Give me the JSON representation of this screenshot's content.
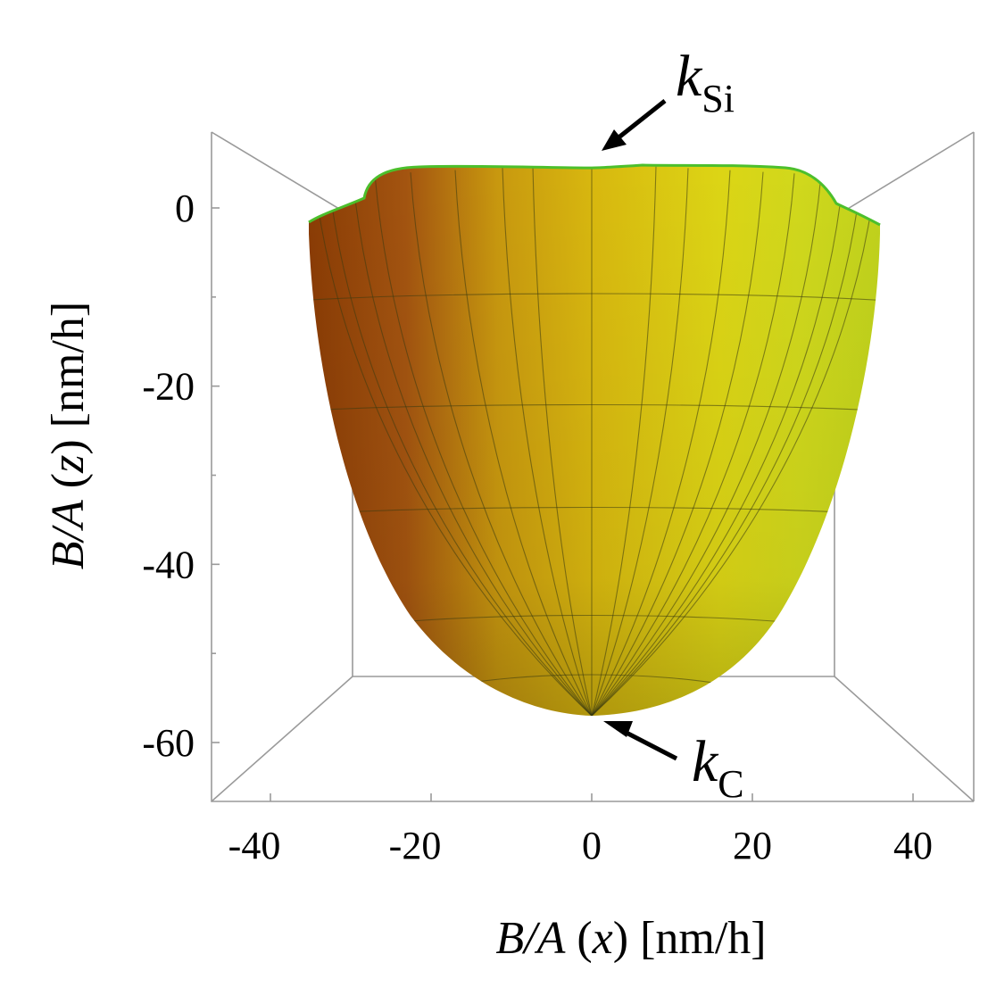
{
  "chart_data": {
    "type": "surface3d",
    "title": "",
    "xlabel": {
      "var": "B/A",
      "axis": "x",
      "unit": "[nm/h]"
    },
    "zlabel": {
      "var": "B/A",
      "axis": "z",
      "unit": "[nm/h]"
    },
    "x_ticks": [
      "-40",
      "-20",
      "0",
      "20",
      "40"
    ],
    "z_ticks": [
      "0",
      "-20",
      "-40",
      "-60"
    ],
    "xlim": [
      -48,
      48
    ],
    "zlim": [
      -66,
      9
    ],
    "surface": {
      "description_points": {
        "rim_z": 4.5,
        "shoulder_z": 0,
        "bottom_z": -57,
        "half_width_x": 36
      },
      "colors": {
        "dark": "#8a3c05",
        "mid": "#d6a40e",
        "light": "#e4e61a",
        "rim": "#4cbf2c",
        "mesh": "#3a3a10"
      }
    },
    "annotations": [
      {
        "base": "k",
        "sub": "Si",
        "points_to_z": 4.5
      },
      {
        "base": "k",
        "sub": "C",
        "points_to_z": -57
      }
    ],
    "grid": false,
    "box": true
  }
}
